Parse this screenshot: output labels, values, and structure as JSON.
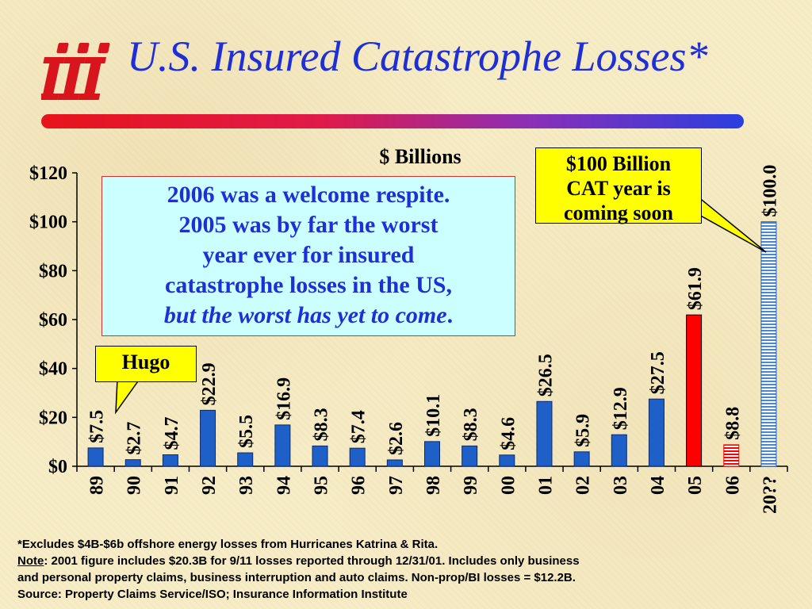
{
  "title": "U.S. Insured Catastrophe Losses*",
  "logo_text": "iii",
  "chart_data": {
    "type": "bar",
    "ylabel": "$ Billions",
    "ylim": [
      0,
      120
    ],
    "yticks": [
      "$0",
      "$20",
      "$40",
      "$60",
      "$80",
      "$100",
      "$120"
    ],
    "categories": [
      "89",
      "90",
      "91",
      "92",
      "93",
      "94",
      "95",
      "96",
      "97",
      "98",
      "99",
      "00",
      "01",
      "02",
      "03",
      "04",
      "05",
      "06",
      "20??"
    ],
    "values": [
      7.5,
      2.7,
      4.7,
      22.9,
      5.5,
      16.9,
      8.3,
      7.4,
      2.6,
      10.1,
      8.3,
      4.6,
      26.5,
      5.9,
      12.9,
      27.5,
      61.9,
      8.8,
      100.0
    ],
    "value_labels": [
      "$7.5",
      "$2.7",
      "$4.7",
      "$22.9",
      "$5.5",
      "$16.9",
      "$8.3",
      "$7.4",
      "$2.6",
      "$10.1",
      "$8.3",
      "$4.6",
      "$26.5",
      "$5.9",
      "$12.9",
      "$27.5",
      "$61.9",
      "$8.8",
      "$100.0"
    ],
    "bar_styles": [
      "solid",
      "solid",
      "solid",
      "solid",
      "solid",
      "solid",
      "solid",
      "solid",
      "solid",
      "solid",
      "solid",
      "solid",
      "solid",
      "solid",
      "solid",
      "solid",
      "red",
      "red-striped",
      "blue-striped"
    ],
    "colors": {
      "bar": "#1f5fc8",
      "highlight": "#ff0000",
      "label": "#000000"
    },
    "grid": false
  },
  "callouts": {
    "note_line1": "2006 was a welcome respite.",
    "note_line2": "2005 was by far the worst",
    "note_line3": "year ever for insured",
    "note_line4": "catastrophe losses in the US,",
    "note_line5_italic": "but the worst has yet to come",
    "note_line5_end": ".",
    "cat_line1": "$100 Billion",
    "cat_line2": "CAT year is",
    "cat_line3": "coming soon",
    "hugo": "Hugo"
  },
  "footnotes": {
    "line1": "*Excludes $4B-$6b offshore energy losses from Hurricanes Katrina & Rita.",
    "note_label": "Note",
    "line2_rest": ": 2001 figure includes $20.3B for 9/11 losses reported through 12/31/01.  Includes only business",
    "line3": "and personal property claims, business interruption and auto claims.  Non-prop/BI losses = $12.2B.",
    "line4": "Source:  Property Claims Service/ISO; Insurance Information Institute"
  }
}
